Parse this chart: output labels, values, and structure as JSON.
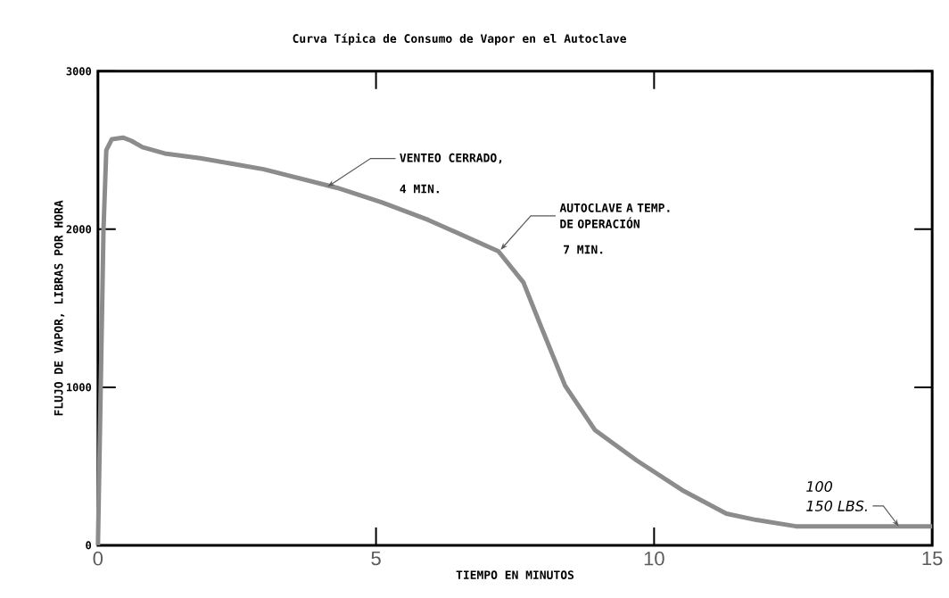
{
  "chart_data": {
    "type": "line",
    "title": "Curva Típica de Consumo de Vapor en el Autoclave",
    "xlabel": "TIEMPO EN MINUTOS",
    "ylabel": "FLUJO DE VAPOR, LIBRAS POR HORA",
    "x": [
      0,
      0.05,
      0.1,
      0.15,
      0.25,
      0.45,
      0.6,
      0.8,
      1.2,
      1.84,
      2.98,
      4.3,
      5.1,
      5.94,
      7.2,
      7.65,
      7.97,
      8.4,
      8.94,
      9.69,
      10.5,
      11.3,
      11.84,
      12.55,
      15
    ],
    "values": [
      0,
      1000,
      2000,
      2500,
      2570,
      2580,
      2560,
      2520,
      2480,
      2450,
      2380,
      2262,
      2171,
      2059,
      1861,
      1664,
      1382,
      1010,
      728,
      536,
      350,
      200,
      160,
      120,
      120
    ],
    "color": "#8c8c8c",
    "marker": "none",
    "line_style": "solid",
    "xlim": [
      0,
      15
    ],
    "ylim": [
      0,
      3000
    ],
    "xticks": [
      0,
      5,
      10,
      15
    ],
    "yticks": [
      0,
      1000,
      2000,
      3000
    ],
    "annotations": [
      {
        "text": "VENTEO CERRADO,",
        "x": 4.13,
        "y": 2270
      },
      "4 MIN.",
      {
        "text": "AUTOCLAVE A TEMP. DE OPERACIÓN",
        "x": 7.24,
        "y": 1870
      },
      "7 MIN.",
      "100",
      {
        "text": "150 LBS.",
        "x": 14.4,
        "y": 120
      }
    ]
  }
}
